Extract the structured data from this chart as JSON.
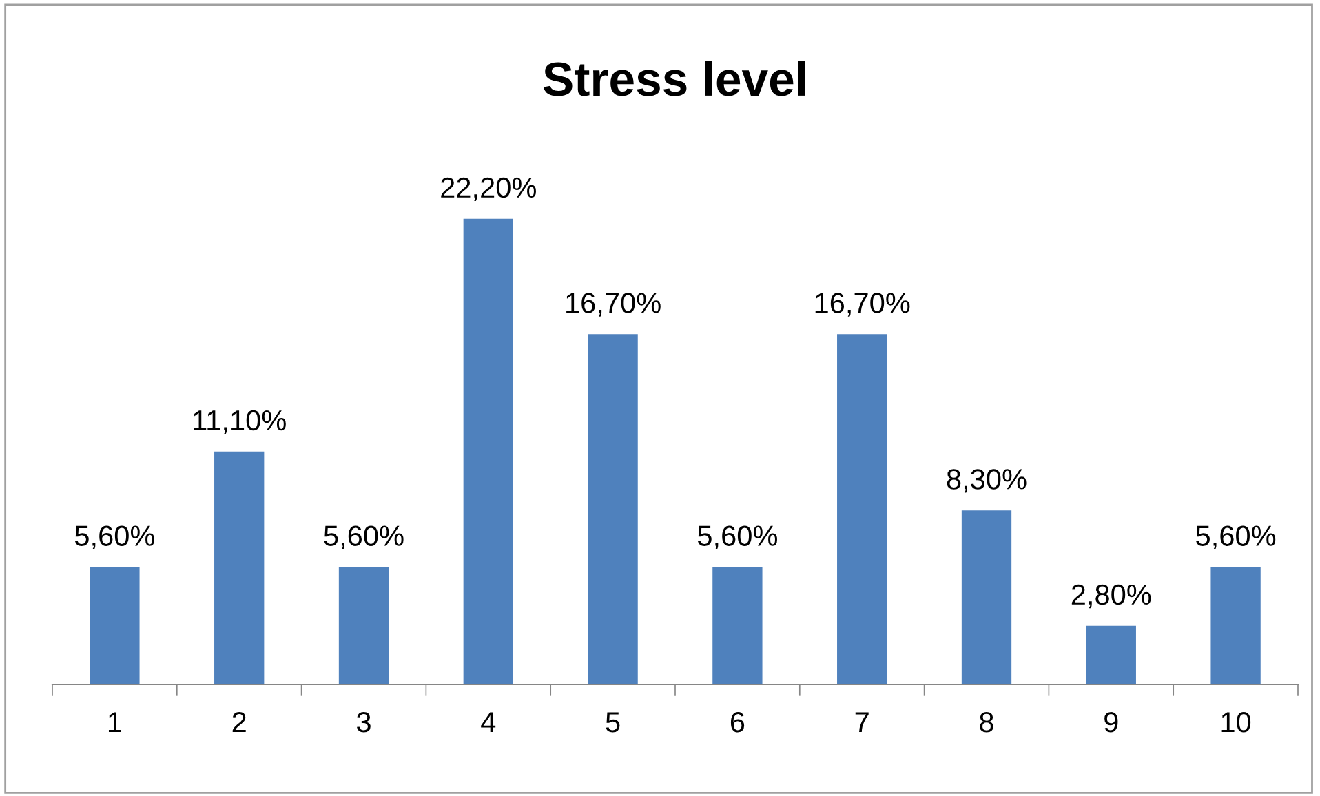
{
  "chart_data": {
    "type": "bar",
    "title": "Stress level",
    "categories": [
      "1",
      "2",
      "3",
      "4",
      "5",
      "6",
      "7",
      "8",
      "9",
      "10"
    ],
    "values": [
      5.6,
      11.1,
      5.6,
      22.2,
      16.7,
      5.6,
      16.7,
      8.3,
      2.8,
      5.6
    ],
    "value_labels": [
      "5,60%",
      "11,10%",
      "5,60%",
      "22,20%",
      "16,70%",
      "5,60%",
      "16,70%",
      "8,30%",
      "2,80%",
      "5,60%"
    ],
    "color": "#4f81bd",
    "tick_labels": "x",
    "grid": false,
    "legend": false
  }
}
